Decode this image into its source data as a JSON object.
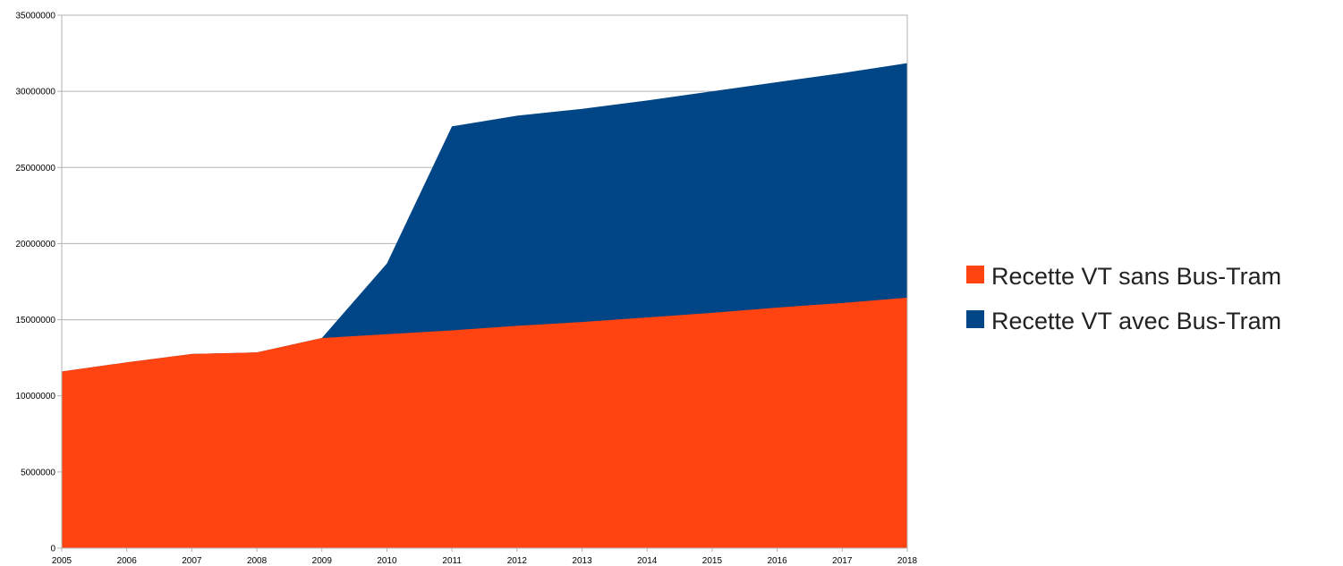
{
  "chart_data": {
    "type": "area",
    "x": [
      2005,
      2006,
      2007,
      2008,
      2009,
      2010,
      2011,
      2012,
      2013,
      2014,
      2015,
      2016,
      2017,
      2018
    ],
    "series": [
      {
        "name": "Recette VT sans Bus-Tram",
        "color": "#ff4411",
        "values": [
          11600000,
          12200000,
          12750000,
          12850000,
          13800000,
          14050000,
          14300000,
          14600000,
          14850000,
          15150000,
          15450000,
          15800000,
          16100000,
          16450000
        ]
      },
      {
        "name": "Recette VT avec Bus-Tram",
        "color": "#004586",
        "values": [
          11600000,
          12200000,
          12750000,
          12850000,
          13800000,
          18700000,
          27700000,
          28400000,
          28850000,
          29400000,
          30000000,
          30600000,
          31200000,
          31850000
        ]
      }
    ],
    "ylim": [
      0,
      35000000
    ],
    "yticks": [
      "0",
      "5000000",
      "10000000",
      "15000000",
      "20000000",
      "25000000",
      "30000000",
      "35000000"
    ],
    "xticks": [
      "2005",
      "2006",
      "2007",
      "2008",
      "2009",
      "2010",
      "2011",
      "2012",
      "2013",
      "2014",
      "2015",
      "2016",
      "2017",
      "2018"
    ],
    "grid": true,
    "legend_position": "right"
  }
}
